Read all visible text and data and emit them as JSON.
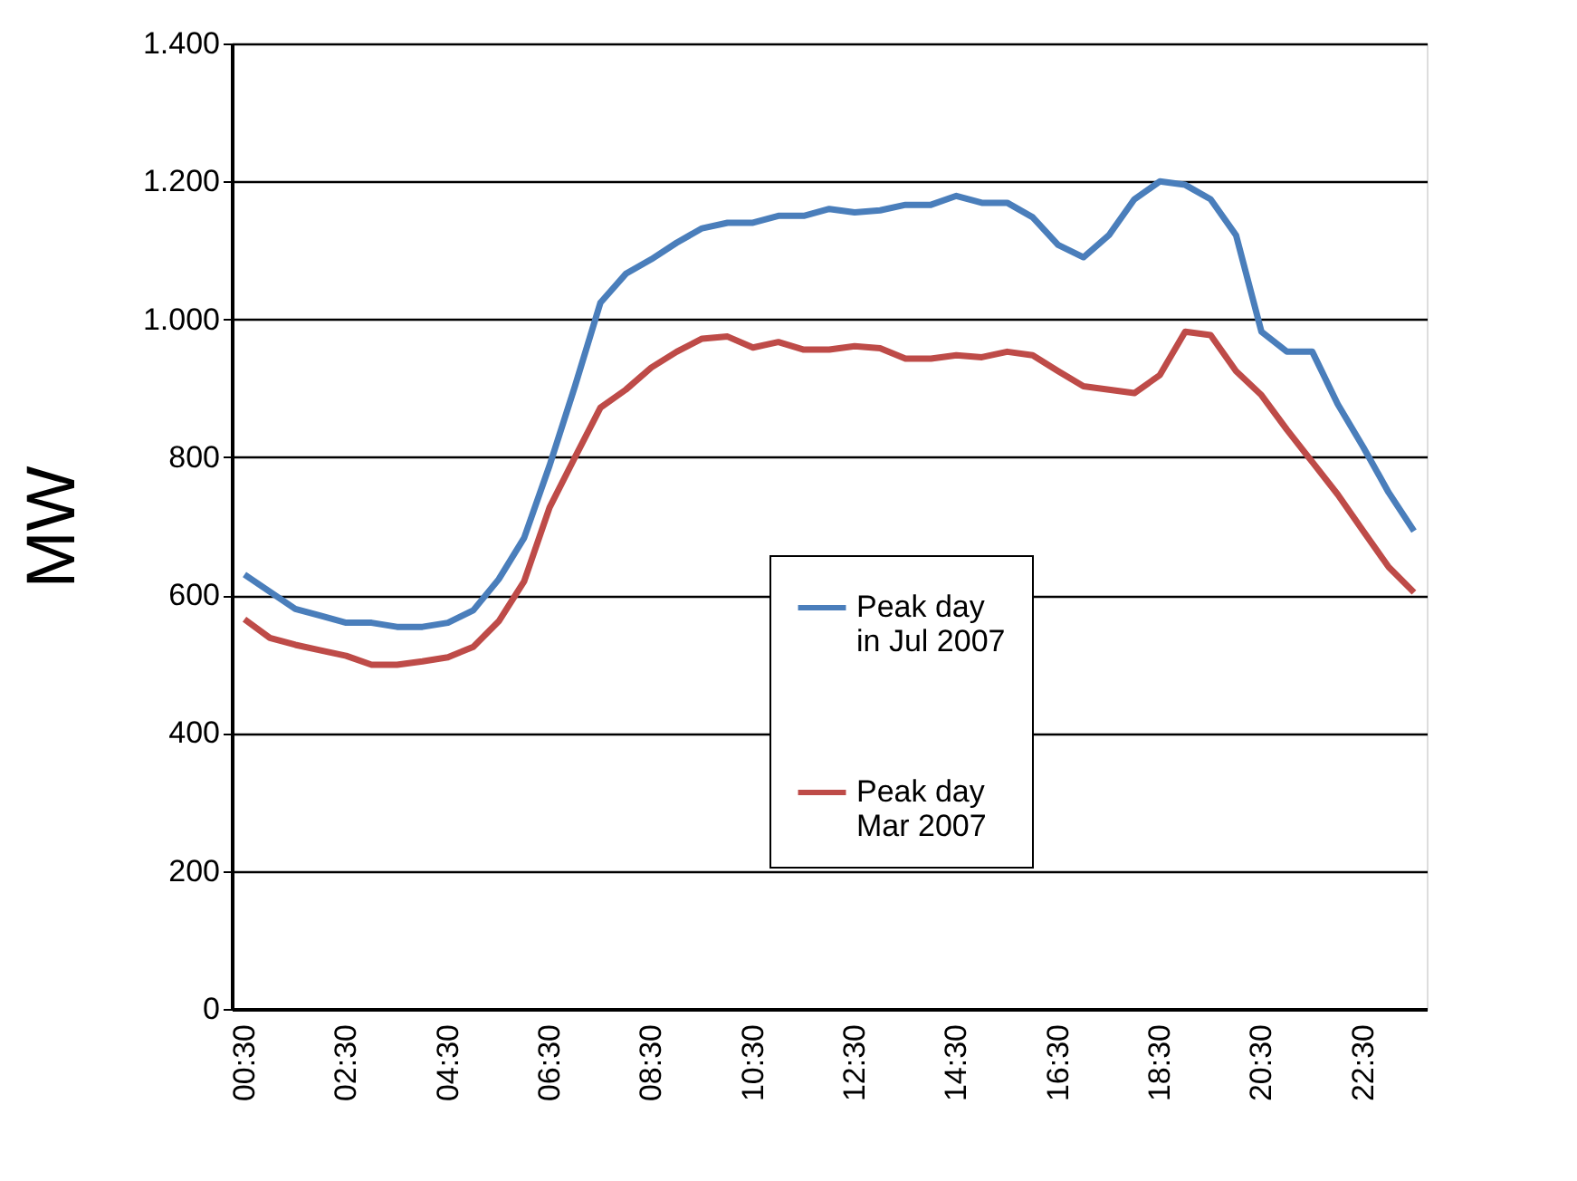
{
  "chart_data": {
    "type": "line",
    "ylabel": "MW",
    "categories": [
      "00:30",
      null,
      null,
      null,
      "02:30",
      null,
      null,
      null,
      "04:30",
      null,
      null,
      null,
      "06:30",
      null,
      null,
      null,
      "08:30",
      null,
      null,
      null,
      "10:30",
      null,
      null,
      null,
      "12:30",
      null,
      null,
      null,
      "14:30",
      null,
      null,
      null,
      "16:30",
      null,
      null,
      null,
      "18:30",
      null,
      null,
      null,
      "20:30",
      null,
      null,
      null,
      "22:30",
      null,
      null
    ],
    "series": [
      {
        "name": "Peak day in Jul 2007",
        "color": "#4a7ebb",
        "values": [
          630,
          605,
          580,
          570,
          560,
          560,
          554,
          554,
          560,
          578,
          623,
          683,
          788,
          903,
          1024,
          1066,
          1087,
          1111,
          1132,
          1140,
          1140,
          1150,
          1150,
          1160,
          1155,
          1158,
          1166,
          1166,
          1179,
          1169,
          1169,
          1148,
          1108,
          1090,
          1122,
          1174,
          1200,
          1195,
          1174,
          1122,
          982,
          953,
          953,
          877,
          815,
          749,
          693
        ]
      },
      {
        "name": "Peak day Mar 2007",
        "color": "#be4b48",
        "values": [
          565,
          538,
          528,
          520,
          512,
          499,
          499,
          504,
          510,
          525,
          562,
          620,
          727,
          800,
          872,
          898,
          930,
          953,
          972,
          975,
          959,
          967,
          956,
          956,
          961,
          958,
          943,
          943,
          948,
          945,
          953,
          948,
          925,
          903,
          898,
          893,
          919,
          982,
          977,
          925,
          890,
          840,
          793,
          746,
          693,
          641,
          604
        ]
      }
    ],
    "ylim": [
      0,
      1400
    ],
    "yticks": [
      0,
      200,
      400,
      600,
      800,
      {
        "value": 1000,
        "label": "1.000"
      },
      {
        "value": 1200,
        "label": "1.200"
      },
      {
        "value": 1400,
        "label": "1.400"
      }
    ],
    "grid": "y",
    "legend": "center",
    "marker": "none",
    "line_style": "solid"
  }
}
